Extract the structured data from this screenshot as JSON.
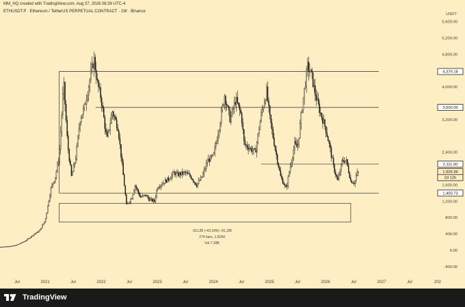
{
  "header": {
    "author_line": "MM_HQ created with TradingView.com, Aug 07, 2026 08:39 UTC-4",
    "symbol_line": "ETHUSDT.P · Ethereum / TetherUS PERPETUAL CONTRACT · 1W · Binance"
  },
  "footer": {
    "brand": "TradingView",
    "logo_icon": "tradingview-logo-icon"
  },
  "colors": {
    "background": "#fdefc3",
    "candle": "#1a1a1a",
    "footer_bg": "#1a1a1a",
    "box_line": "#444444"
  },
  "chart_data": {
    "type": "candlestick",
    "currency_label": "USDT",
    "y_ticks": [
      "5,600.00",
      "5,200.00",
      "4,800.00",
      "4,000.00",
      "3,200.00",
      "2,400.00",
      "1,600.00",
      "1,200.00",
      "800.00",
      "400.00",
      "0.00",
      "-400.00"
    ],
    "x_ticks": [
      "Jul",
      "2021",
      "Jul",
      "2022",
      "Jul",
      "2023",
      "Jul",
      "2024",
      "Jul",
      "2025",
      "Jul",
      "2026",
      "Jul",
      "2027",
      "Jul",
      "202"
    ],
    "price_labels": [
      {
        "text": "4,379.18",
        "value": 4379.18
      },
      {
        "text": "3,500.00",
        "value": 3500
      },
      {
        "text": "2,111.00",
        "value": 2111
      },
      {
        "text": "1,926.99",
        "value": 1926.99,
        "current": true
      },
      {
        "text": "2d 12h",
        "value": 1780,
        "current": true
      },
      {
        "text": "1,400.73",
        "value": 1400.73
      }
    ],
    "levels": [
      {
        "value": 4379.18,
        "from": 2021.25,
        "to": 2026.95
      },
      {
        "value": 3500,
        "from": 2021.9,
        "to": 2026.95
      },
      {
        "value": 2111,
        "from": 2024.85,
        "to": 2026.95
      },
      {
        "value": 1400.73,
        "from": 2021.25,
        "to": 2026.95
      }
    ],
    "measure_box": {
      "x_from": 2021.25,
      "x_to": 2026.45,
      "y_top": 1150,
      "y_bottom": 690
    },
    "measure_text": [
      "-911.85 (-43.19%) -91,185",
      "274 bars, 1,918d",
      "Vol 7.39B"
    ],
    "path": [
      [
        2020.2,
        80
      ],
      [
        2020.4,
        100
      ],
      [
        2020.5,
        130
      ],
      [
        2020.65,
        230
      ],
      [
        2020.8,
        390
      ],
      [
        2020.9,
        480
      ],
      [
        2021.0,
        730
      ],
      [
        2021.1,
        1500
      ],
      [
        2021.18,
        1800
      ],
      [
        2021.25,
        2300
      ],
      [
        2021.33,
        4100
      ],
      [
        2021.4,
        2600
      ],
      [
        2021.47,
        1800
      ],
      [
        2021.55,
        2300
      ],
      [
        2021.62,
        3200
      ],
      [
        2021.7,
        3500
      ],
      [
        2021.8,
        4200
      ],
      [
        2021.87,
        4700
      ],
      [
        2021.93,
        4100
      ],
      [
        2022.0,
        3700
      ],
      [
        2022.1,
        2700
      ],
      [
        2022.2,
        3400
      ],
      [
        2022.3,
        3000
      ],
      [
        2022.38,
        2000
      ],
      [
        2022.45,
        1100
      ],
      [
        2022.55,
        1300
      ],
      [
        2022.6,
        1600
      ],
      [
        2022.7,
        1300
      ],
      [
        2022.8,
        1350
      ],
      [
        2022.85,
        1250
      ],
      [
        2022.95,
        1200
      ],
      [
        2023.0,
        1550
      ],
      [
        2023.1,
        1650
      ],
      [
        2023.2,
        1750
      ],
      [
        2023.3,
        1900
      ],
      [
        2023.35,
        1850
      ],
      [
        2023.5,
        1900
      ],
      [
        2023.6,
        1800
      ],
      [
        2023.7,
        1600
      ],
      [
        2023.8,
        1800
      ],
      [
        2023.9,
        2200
      ],
      [
        2024.0,
        2300
      ],
      [
        2024.1,
        3000
      ],
      [
        2024.2,
        3800
      ],
      [
        2024.3,
        3200
      ],
      [
        2024.4,
        3700
      ],
      [
        2024.5,
        3300
      ],
      [
        2024.55,
        2600
      ],
      [
        2024.65,
        2500
      ],
      [
        2024.75,
        2400
      ],
      [
        2024.85,
        3300
      ],
      [
        2024.95,
        3900
      ],
      [
        2025.0,
        3300
      ],
      [
        2025.1,
        2500
      ],
      [
        2025.2,
        1800
      ],
      [
        2025.3,
        1500
      ],
      [
        2025.35,
        1900
      ],
      [
        2025.45,
        2600
      ],
      [
        2025.5,
        2500
      ],
      [
        2025.6,
        3700
      ],
      [
        2025.68,
        4500
      ],
      [
        2025.75,
        4300
      ],
      [
        2025.82,
        3800
      ],
      [
        2025.9,
        3400
      ],
      [
        2026.0,
        3000
      ],
      [
        2026.08,
        2500
      ],
      [
        2026.15,
        2000
      ],
      [
        2026.22,
        1700
      ],
      [
        2026.3,
        2200
      ],
      [
        2026.37,
        2200
      ],
      [
        2026.45,
        1700
      ],
      [
        2026.52,
        1650
      ],
      [
        2026.55,
        1850
      ],
      [
        2026.6,
        1930
      ]
    ]
  }
}
